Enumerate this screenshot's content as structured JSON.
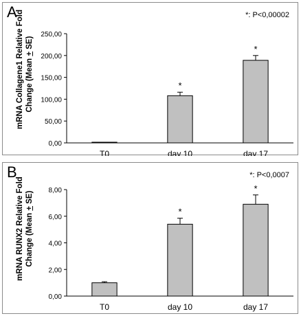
{
  "chart_data": [
    {
      "type": "bar",
      "panel_label": "A",
      "annotation": "*: P<0,00002",
      "ylabel_line1": "mRNA Collagene1 Relative Fold",
      "ylabel_line2_prefix": "Change (Mean ",
      "ylabel_line2_pm": "+",
      "ylabel_line2_suffix": " SE)",
      "categories": [
        "T0",
        "day 10",
        "day 17"
      ],
      "values": [
        1,
        108,
        189
      ],
      "errors": [
        0.5,
        8,
        11
      ],
      "significance": [
        "",
        "*",
        "*"
      ],
      "ylim": [
        0,
        250
      ],
      "yticks": [
        "0,00",
        "50,00",
        "100,00",
        "150,00",
        "200,00",
        "250,00"
      ],
      "bar_color": "#c0c0c0"
    },
    {
      "type": "bar",
      "panel_label": "B",
      "annotation": "*: P<0,0007",
      "ylabel_line1": "mRNA RUNX2 Relative Fold",
      "ylabel_line2_prefix": "Change (Mean ",
      "ylabel_line2_pm": "+",
      "ylabel_line2_suffix": " SE)",
      "categories": [
        "T0",
        "day 10",
        "day 17"
      ],
      "values": [
        1.0,
        5.4,
        6.9
      ],
      "errors": [
        0.08,
        0.45,
        0.7
      ],
      "significance": [
        "",
        "*",
        "*"
      ],
      "ylim": [
        0,
        8
      ],
      "yticks": [
        "0,00",
        "2,00",
        "4,00",
        "6,00",
        "8,00"
      ],
      "bar_color": "#c0c0c0"
    }
  ]
}
